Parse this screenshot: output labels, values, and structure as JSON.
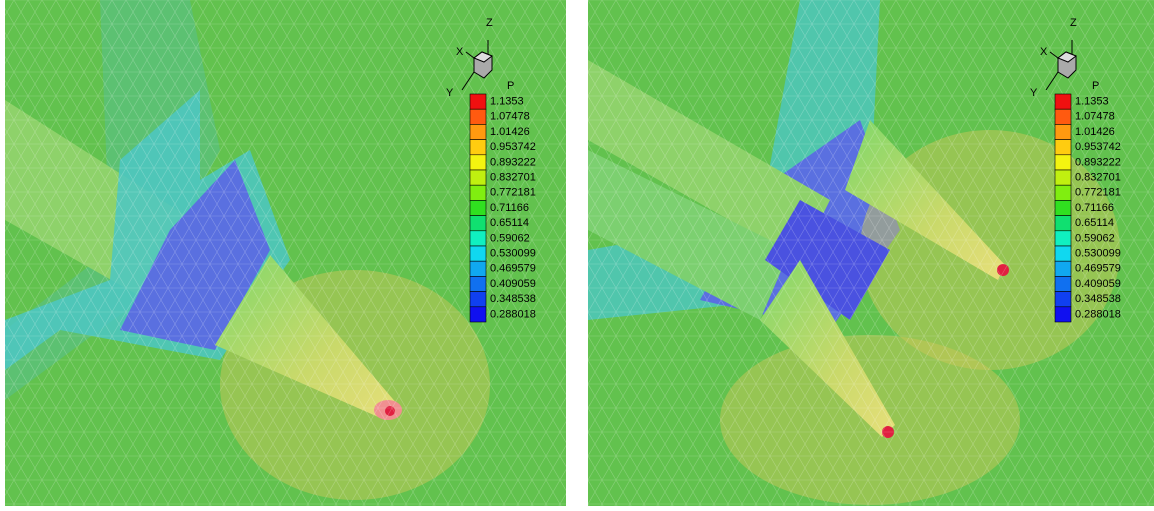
{
  "triad": {
    "x": "X",
    "y": "Y",
    "z": "Z"
  },
  "legend": {
    "title": "P",
    "levels": [
      "1.1353",
      "1.07478",
      "1.01426",
      "0.953742",
      "0.893222",
      "0.832701",
      "0.772181",
      "0.71166",
      "0.65114",
      "0.59062",
      "0.530099",
      "0.469579",
      "0.409059",
      "0.348538",
      "0.288018"
    ],
    "colors": [
      "#f01010",
      "#ff5a10",
      "#ff9a10",
      "#ffcc10",
      "#f4f410",
      "#c0f010",
      "#80ee10",
      "#30e020",
      "#10e070",
      "#10f0c0",
      "#10d8f0",
      "#10a8f0",
      "#1070f0",
      "#1040f0",
      "#1010f0"
    ]
  }
}
